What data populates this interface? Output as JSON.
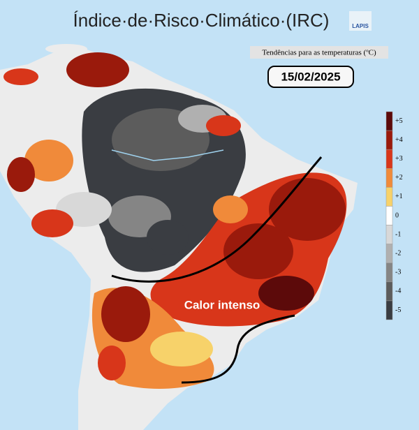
{
  "title": "Índice·de·Risco·Climático·(IRC)",
  "logo": "LAPIS",
  "subtitle": "Tendências para as temperaturas (ºC)",
  "date": "15/02/2025",
  "annotation": "Calor intenso",
  "legend": [
    {
      "label": "+5",
      "color": "#5c0a0a"
    },
    {
      "label": "+4",
      "color": "#9a1a0c"
    },
    {
      "label": "+3",
      "color": "#d8361a"
    },
    {
      "label": "+2",
      "color": "#f08a3a"
    },
    {
      "label": "+1",
      "color": "#f7d26a"
    },
    {
      "label": "0",
      "color": "#ffffff"
    },
    {
      "label": "-1",
      "color": "#d8d8d8"
    },
    {
      "label": "-2",
      "color": "#b0b0b0"
    },
    {
      "label": "-3",
      "color": "#858585"
    },
    {
      "label": "-4",
      "color": "#5c5c5c"
    },
    {
      "label": "-5",
      "color": "#3a3d42"
    }
  ]
}
